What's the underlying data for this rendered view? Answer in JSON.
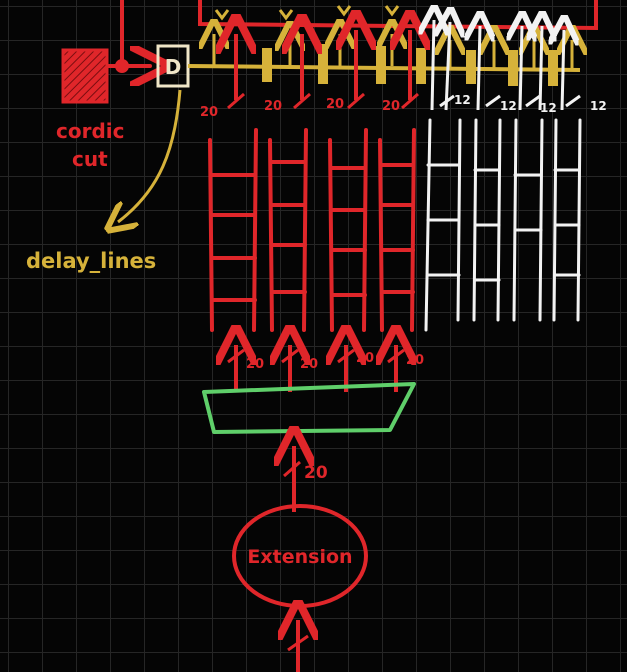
{
  "labels": {
    "cordic_cut": [
      "cordic",
      "cut"
    ],
    "delay_block": "D",
    "delay_lines": "delay_lines",
    "extension": "Extension"
  },
  "bus_widths": {
    "input_bus": "20",
    "red_lanes_bottom": [
      "20",
      "20",
      "20",
      "20"
    ],
    "red_lanes_top": [
      "20",
      "20",
      "20",
      "20"
    ],
    "white_lanes_top": [
      "12",
      "12",
      "12",
      "12"
    ]
  },
  "colors": {
    "background": "#050505",
    "grid": "#262626",
    "red": "#e0262a",
    "gold": "#d6b23a",
    "white": "#f2f2f2",
    "green": "#5fcf6a"
  },
  "icons": {
    "cordic_cut": "hatched-red-box",
    "delay": "d-flip-flop-box"
  }
}
